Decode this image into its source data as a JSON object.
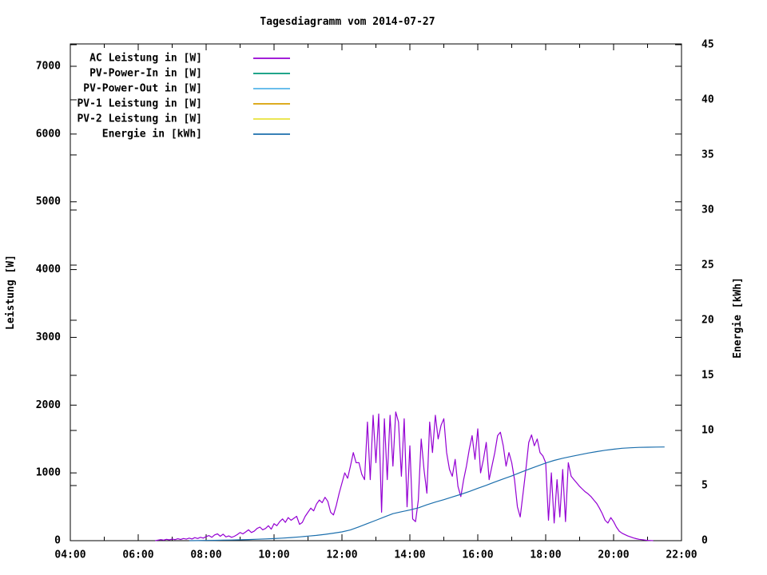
{
  "chart_data": {
    "type": "line",
    "title": "Tagesdiagramm vom 2014-07-27",
    "ylabel": "Leistung [W]",
    "y2label": "Energie [kWh]",
    "x_range": [
      4,
      22
    ],
    "y_range": [
      0,
      7330
    ],
    "y2_range": [
      0,
      45.07
    ],
    "x_major_ticks": [
      4,
      6,
      8,
      10,
      12,
      14,
      16,
      18,
      20,
      22
    ],
    "x_tick_labels": [
      "04:00",
      "06:00",
      "08:00",
      "10:00",
      "12:00",
      "14:00",
      "16:00",
      "18:00",
      "20:00",
      "22:00"
    ],
    "x_minor_ticks": [
      5,
      7,
      9,
      11,
      13,
      15,
      17,
      19,
      21
    ],
    "y_ticks": [
      0,
      1000,
      2000,
      3000,
      4000,
      5000,
      6000,
      7000
    ],
    "y2_ticks": [
      0,
      5,
      10,
      15,
      20,
      25,
      30,
      35,
      40,
      45
    ],
    "grid": false,
    "legend_position": "inside-top-left",
    "series": [
      {
        "name": "AC Leistung in [W]",
        "color": "#9400d3",
        "axis": "y1",
        "start_hour": 6.5,
        "step_minutes": 5,
        "values": [
          0,
          8,
          15,
          8,
          20,
          12,
          25,
          15,
          28,
          18,
          32,
          22,
          38,
          25,
          45,
          32,
          50,
          38,
          60,
          75,
          50,
          85,
          100,
          65,
          95,
          55,
          70,
          50,
          65,
          90,
          120,
          100,
          130,
          160,
          120,
          140,
          180,
          200,
          160,
          180,
          220,
          170,
          250,
          220,
          280,
          320,
          270,
          340,
          300,
          330,
          360,
          240,
          270,
          360,
          420,
          480,
          440,
          540,
          600,
          560,
          640,
          580,
          420,
          380,
          520,
          700,
          850,
          1000,
          920,
          1100,
          1300,
          1150,
          1150,
          980,
          900,
          1750,
          900,
          1850,
          1150,
          1870,
          420,
          1800,
          900,
          1850,
          1100,
          1900,
          1750,
          950,
          1800,
          500,
          1400,
          320,
          280,
          600,
          1500,
          1050,
          700,
          1750,
          1300,
          1850,
          1500,
          1700,
          1800,
          1300,
          1050,
          950,
          1200,
          800,
          650,
          900,
          1100,
          1350,
          1550,
          1200,
          1650,
          1000,
          1200,
          1450,
          900,
          1100,
          1300,
          1550,
          1600,
          1400,
          1100,
          1300,
          1150,
          900,
          500,
          350,
          700,
          1050,
          1450,
          1560,
          1400,
          1500,
          1300,
          1250,
          1150,
          300,
          1000,
          260,
          900,
          350,
          1050,
          280,
          1150,
          950,
          900,
          850,
          800,
          760,
          720,
          690,
          650,
          600,
          550,
          480,
          400,
          300,
          260,
          340,
          280,
          200,
          140,
          110,
          90,
          70,
          55,
          40,
          30,
          20,
          15,
          10,
          5,
          2,
          0
        ]
      },
      {
        "name": "PV-Power-In in [W]",
        "color": "#00987a",
        "axis": "y1",
        "start_hour": 0,
        "step_minutes": 5,
        "values": []
      },
      {
        "name": "PV-Power-Out in [W]",
        "color": "#56b4e9",
        "axis": "y1",
        "start_hour": 0,
        "step_minutes": 5,
        "values": []
      },
      {
        "name": "PV-1 Leistung in [W]",
        "color": "#d8a000",
        "axis": "y1",
        "start_hour": 0,
        "step_minutes": 5,
        "values": []
      },
      {
        "name": "PV-2 Leistung in [W]",
        "color": "#e8e33c",
        "axis": "y1",
        "start_hour": 0,
        "step_minutes": 5,
        "values": []
      },
      {
        "name": "Energie in [kWh]",
        "color": "#1c6fad",
        "axis": "y2",
        "start_hour": 7.5,
        "step_minutes": 15,
        "values": [
          0.0,
          0.01,
          0.02,
          0.03,
          0.05,
          0.06,
          0.08,
          0.1,
          0.13,
          0.16,
          0.19,
          0.23,
          0.28,
          0.34,
          0.41,
          0.48,
          0.57,
          0.68,
          0.8,
          0.97,
          1.25,
          1.55,
          1.85,
          2.15,
          2.45,
          2.62,
          2.78,
          2.98,
          3.25,
          3.5,
          3.72,
          3.96,
          4.2,
          4.46,
          4.75,
          5.02,
          5.32,
          5.6,
          5.88,
          6.18,
          6.48,
          6.76,
          7.04,
          7.28,
          7.48,
          7.64,
          7.8,
          7.95,
          8.08,
          8.2,
          8.3,
          8.38,
          8.43,
          8.46,
          8.48,
          8.49,
          8.5
        ]
      }
    ]
  }
}
